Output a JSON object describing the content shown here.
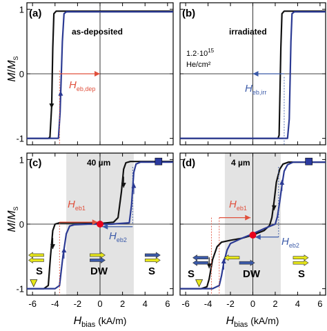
{
  "figure": {
    "y_axis_label": {
      "main": "M",
      "slash": "/",
      "main2": "M",
      "sub": "S"
    },
    "x_axis_label": {
      "main": "H",
      "sub": "bias",
      "unit": " (kA/m)"
    },
    "x_ticks": [
      "-6",
      "-4",
      "-2",
      "0",
      "2",
      "4",
      "6"
    ],
    "y_ticks": [
      "1",
      "0",
      "-1"
    ]
  },
  "colors": {
    "black_curve": "#111111",
    "blue_curve": "#2b3a93",
    "red_annotation": "#e0503c",
    "blue_annotation": "#3b5aa8",
    "gray_region": "#e3e3e3",
    "yellow_arrow": "#e6e61a",
    "red_dot": "#e8001c",
    "blue_square": "#2b3aa0"
  },
  "panels": {
    "a": {
      "label": "(a)",
      "title": "as-deposited",
      "heb_main": "H",
      "heb_sub": "eb,dep"
    },
    "b": {
      "label": "(b)",
      "title": "irradiated",
      "dose_line1": "1.2·10",
      "dose_exp": "15",
      "dose_line2": "He/cm²",
      "heb_main": "H",
      "heb_sub": "eb,irr"
    },
    "c": {
      "label": "(c)",
      "thickness": "40 µm",
      "heb1_main": "H",
      "heb1_sub": "eb1",
      "heb2_main": "H",
      "heb2_sub": "eb2",
      "left_state": "S",
      "middle_state": "DW",
      "right_state": "S"
    },
    "d": {
      "label": "(d)",
      "thickness": "4 µm",
      "heb1_main": "H",
      "heb1_sub": "eb1",
      "heb2_main": "H",
      "heb2_sub": "eb2",
      "left_state": "S",
      "middle_state": "DW",
      "right_state": "S"
    }
  },
  "chart_data": [
    {
      "type": "line",
      "panel": "a",
      "xlim": [
        -6.5,
        6.5
      ],
      "ylim": [
        -1.1,
        1.1
      ],
      "series": [
        {
          "color": "black",
          "x": [
            -6.5,
            -4.6,
            -4.45,
            -4.3,
            -4.2,
            -4.1,
            -3.9,
            6.5
          ],
          "y": [
            -1,
            -1,
            -0.98,
            -0.5,
            0.4,
            0.93,
            0.97,
            0.97
          ]
        },
        {
          "color": "blue",
          "x": [
            -6.5,
            -3.7,
            -3.55,
            -3.35,
            -3.2,
            -3.0,
            6.5
          ],
          "y": [
            -1,
            -1,
            -0.6,
            0.5,
            0.93,
            0.96,
            0.96
          ]
        }
      ],
      "heb_from": -3.6,
      "heb_to": 0
    },
    {
      "type": "line",
      "panel": "b",
      "xlim": [
        -6.5,
        6.5
      ],
      "ylim": [
        -1.1,
        1.1
      ],
      "series": [
        {
          "color": "black",
          "x": [
            -6.5,
            2.25,
            2.35,
            2.5,
            2.6,
            2.8,
            6.5
          ],
          "y": [
            -1,
            -1,
            -0.95,
            0.4,
            0.93,
            0.97,
            0.97
          ]
        },
        {
          "color": "blue",
          "x": [
            -6.5,
            3.1,
            3.25,
            3.4,
            3.5,
            3.7,
            6.5
          ],
          "y": [
            -1,
            -1,
            -0.7,
            0.5,
            0.93,
            0.96,
            0.96
          ]
        }
      ],
      "heb_from": 2.8,
      "heb_to": 0
    },
    {
      "type": "line",
      "panel": "c",
      "xlim": [
        -6.5,
        6.5
      ],
      "ylim": [
        -1.1,
        1.1
      ],
      "shaded_x": [
        -3.0,
        3.0
      ],
      "series": [
        {
          "color": "black",
          "x": [
            -6.5,
            -5.0,
            -4.6,
            -4.4,
            -4.2,
            -4.0,
            -3.6,
            -1.5,
            0,
            1.2,
            1.6,
            1.9,
            2.1,
            2.3,
            2.7,
            6.5
          ],
          "y": [
            -1,
            -1,
            -0.95,
            -0.5,
            -0.1,
            0.0,
            0.02,
            0.02,
            0.01,
            0.03,
            0.1,
            0.5,
            0.85,
            0.95,
            0.97,
            0.97
          ]
        },
        {
          "color": "blue",
          "x": [
            -6.5,
            -4.0,
            -3.6,
            -3.3,
            -3.0,
            -2.7,
            -2.3,
            -1.0,
            0,
            1.0,
            2.6,
            2.8,
            3.0,
            3.2,
            3.6,
            6.5
          ],
          "y": [
            -1,
            -1,
            -0.95,
            -0.5,
            -0.15,
            -0.03,
            -0.01,
            0.0,
            0.0,
            0.0,
            0.02,
            0.3,
            0.8,
            0.93,
            0.96,
            0.96
          ]
        }
      ],
      "heb1_from": -3.6,
      "heb1_to": 0,
      "heb2_from": 2.9,
      "heb2_to": 0.2
    },
    {
      "type": "line",
      "panel": "d",
      "xlim": [
        -6.5,
        6.5
      ],
      "ylim": [
        -1.1,
        1.1
      ],
      "shaded_x": [
        -2.5,
        2.5
      ],
      "series": [
        {
          "color": "black",
          "x": [
            -6.5,
            -4.6,
            -4.1,
            -3.9,
            -3.6,
            -3.2,
            -2.8,
            -2.0,
            -1.0,
            0,
            1.0,
            1.5,
            1.7,
            1.9,
            2.1,
            2.4,
            2.7,
            3.2,
            6.5
          ],
          "y": [
            -1,
            -1,
            -0.97,
            -0.85,
            -0.55,
            -0.35,
            -0.28,
            -0.25,
            -0.22,
            -0.17,
            -0.1,
            -0.02,
            0.1,
            0.35,
            0.65,
            0.85,
            0.93,
            0.96,
            0.96
          ]
        },
        {
          "color": "blue",
          "x": [
            -6.5,
            -3.6,
            -3.0,
            -2.8,
            -2.6,
            -2.3,
            -2.0,
            -1.0,
            0,
            1.0,
            2.0,
            2.2,
            2.4,
            2.6,
            2.8,
            3.1,
            3.6,
            6.5
          ],
          "y": [
            -1,
            -1,
            -0.95,
            -0.8,
            -0.6,
            -0.4,
            -0.3,
            -0.22,
            -0.15,
            -0.07,
            0.0,
            0.12,
            0.35,
            0.6,
            0.82,
            0.92,
            0.96,
            0.96
          ]
        }
      ],
      "heb1_from": -3.0,
      "heb1_to": 0,
      "heb2_from": 2.3,
      "heb2_to": 0.2
    }
  ]
}
